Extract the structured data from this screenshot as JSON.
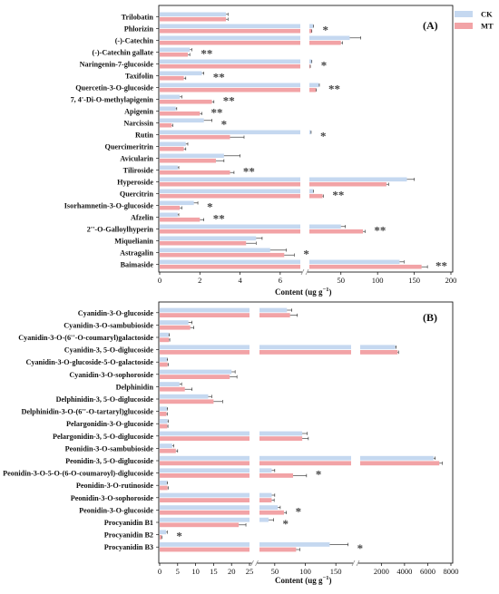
{
  "colors": {
    "CK": "#c5d8f0",
    "MT": "#f2a3a6",
    "error_bar": "#222222",
    "break_mark": "#888888"
  },
  "chart_data": [
    {
      "type": "bar",
      "orientation": "horizontal",
      "panel_label": "(A)",
      "xlabel": "Content (ug g",
      "xlabel_sup": "−1",
      "xlabel_tail": ")",
      "legend": [
        "CK",
        "MT"
      ],
      "legend_position": "top-right",
      "axis_segments": [
        {
          "min": 0,
          "max": 7,
          "ticks": [
            0,
            2,
            4,
            6
          ],
          "tick_labels": [
            "0",
            "2",
            "4",
            "6"
          ]
        },
        {
          "min": 7,
          "max": 200,
          "ticks": [
            50,
            100,
            150,
            200
          ],
          "tick_labels": [
            "50",
            "100",
            "150",
            "200"
          ]
        }
      ],
      "categories": [
        "Trilobatin",
        "Phlorizin",
        "(-)-Catechin",
        "(-)-Catechin gallate",
        "Naringenin-7-glucoside",
        "Taxifolin",
        "Quercetin-3-O-glucoside",
        "7, 4'-Di-O-methylapigenin",
        "Apigenin",
        "Narcissin",
        "Rutin",
        "Quercimeritrin",
        "Avicularin",
        "Tiliroside",
        "Hyperoside",
        "Quercitrin",
        "Isorhamnetin-3-O-glucoside",
        "Afzelin",
        "2''-O-Galloylhyperin",
        "Miquelianin",
        "Astragalin",
        "Baimaside"
      ],
      "series": [
        {
          "name": "CK",
          "values": [
            3.3,
            12,
            62,
            1.5,
            10,
            2.1,
            20,
            1.0,
            0.8,
            2.2,
            9,
            1.3,
            3.2,
            0.9,
            140,
            12,
            1.7,
            0.9,
            50,
            4.8,
            5.5,
            130
          ],
          "errors": [
            0.1,
            0.5,
            15,
            0.1,
            0.4,
            0.1,
            0.6,
            0.1,
            0.05,
            0.4,
            0.4,
            0.1,
            0.8,
            0.05,
            10,
            0.5,
            0.2,
            0.05,
            6,
            0.3,
            0.8,
            6
          ]
        },
        {
          "name": "MT",
          "values": [
            3.3,
            10,
            50,
            1.4,
            8,
            1.2,
            16,
            2.6,
            2.0,
            0.6,
            3.5,
            1.2,
            2.8,
            3.5,
            112,
            25,
            1.0,
            2.0,
            80,
            4.3,
            6.2,
            160
          ],
          "errors": [
            0.1,
            0.4,
            2,
            0.1,
            0.3,
            0.1,
            0.6,
            0.1,
            0.1,
            0.05,
            0.7,
            0.1,
            0.4,
            0.2,
            3,
            1,
            0.1,
            0.2,
            3,
            0.5,
            0.5,
            8
          ]
        }
      ],
      "significance": [
        "",
        "*",
        "",
        "**",
        "*",
        "**",
        "**",
        "**",
        "**",
        "*",
        "*",
        "",
        "",
        "**",
        "",
        "**",
        "*",
        "**",
        "**",
        "",
        "*",
        "**"
      ]
    },
    {
      "type": "bar",
      "orientation": "horizontal",
      "panel_label": "(B)",
      "xlabel": "Content (ug g",
      "xlabel_sup": "−1",
      "xlabel_tail": ")",
      "axis_segments": [
        {
          "min": 0,
          "max": 25,
          "ticks": [
            0,
            5,
            10,
            15,
            20,
            25
          ],
          "tick_labels": [
            "0",
            "5",
            "10",
            "15",
            "20",
            "25"
          ]
        },
        {
          "min": 25,
          "max": 175,
          "ticks": [
            50,
            100,
            150
          ],
          "tick_labels": [
            "50",
            "100",
            "150"
          ]
        },
        {
          "min": 175,
          "max": 8000,
          "ticks": [
            2000,
            4000,
            6000,
            8000
          ],
          "tick_labels": [
            "2000",
            "4000",
            "6000",
            "8000"
          ]
        }
      ],
      "categories": [
        "Cyanidin-3-O-glucoside",
        "Cyanidin-3-O-sambubioside",
        "Cyanidin-3-O-(6''-O-coumaryl)galactoside",
        "Cyanidin-3, 5-O-diglucoside",
        "Cyanidin-3-O-glucoside-5-O-galactoside",
        "Cyanidin-3-O-sophoroside",
        "Delphinidin",
        "Delphinidin-3, 5-O-diglucoside",
        "Delphinidin-3-O-(6''-O-tartaryl)glucoside",
        "Pelargonidin-3-O-glucoside",
        "Pelargonidin-3, 5-O-diglucoside",
        "Peonidin-3-O-sambubioside",
        "Peonidin-3, 5-O-diglucoside",
        "Peonidin-3-O-5-O-(6-O-coumaroyl)-diglucoside",
        "Peonidin-3-O-rutinoside",
        "Peonidin-3-O-sophoroside",
        "Peonidin-3-O-glucoside",
        "Procyanidin B1",
        "Procyanidin B2",
        "Procyanidin B3"
      ],
      "series": [
        {
          "name": "CK",
          "values": [
            70,
            8,
            2.5,
            3200,
            2.0,
            20,
            5.5,
            13.5,
            2.0,
            2.2,
            95,
            3.5,
            6500,
            45,
            2.0,
            45,
            55,
            40,
            1.8,
            140
          ],
          "errors": [
            8,
            1,
            0.2,
            80,
            0.2,
            1,
            0.6,
            1.0,
            0.2,
            0.2,
            8,
            0.4,
            150,
            5,
            0.2,
            5,
            4,
            8,
            0.3,
            30
          ]
        },
        {
          "name": "MT",
          "values": [
            75,
            8.5,
            2.6,
            3400,
            2.2,
            19.5,
            7,
            15,
            1.9,
            2.1,
            95,
            4.5,
            7000,
            80,
            2.2,
            45,
            65,
            22,
            0.5,
            85
          ],
          "errors": [
            12,
            1,
            0.2,
            80,
            0.2,
            2,
            2,
            2.5,
            0.2,
            0.2,
            10,
            0.5,
            250,
            22,
            0.2,
            4,
            4,
            2,
            0.1,
            6
          ]
        }
      ],
      "significance": [
        "",
        "",
        "",
        "",
        "",
        "",
        "",
        "",
        "",
        "",
        "",
        "",
        "",
        "*",
        "",
        "",
        "*",
        "*",
        "*",
        "*"
      ]
    }
  ]
}
